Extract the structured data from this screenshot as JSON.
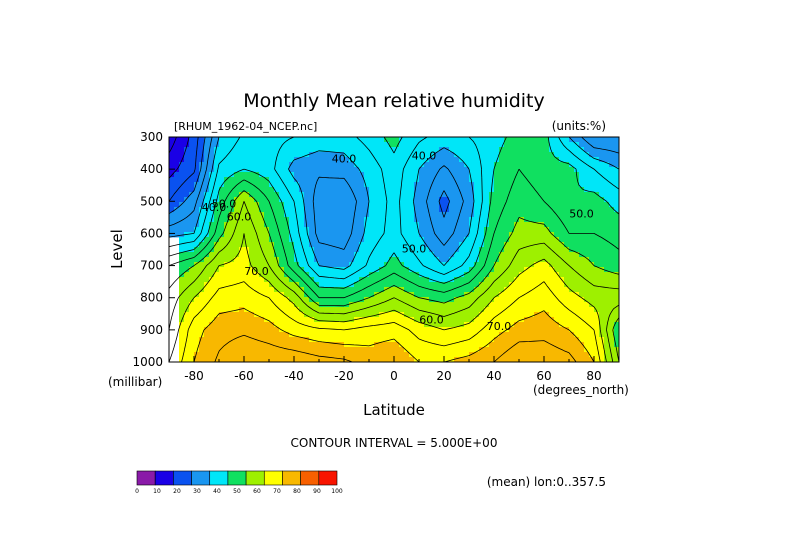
{
  "chart_data": {
    "type": "heatmap",
    "title": "Monthly Mean relative humidity",
    "file_label": "[RHUM_1962-04_NCEP.nc]",
    "units_label": "(units:%)",
    "xlabel": "Latitude",
    "x_unit_label": "(degrees_north)",
    "ylabel": "Level",
    "y_unit_label": "(millibar)",
    "xlim": [
      -90,
      90
    ],
    "ylim": [
      1000,
      300
    ],
    "x_ticks": [
      "-80",
      "-60",
      "-40",
      "-20",
      "0",
      "20",
      "40",
      "60",
      "80"
    ],
    "y_ticks": [
      "300",
      "400",
      "500",
      "600",
      "700",
      "800",
      "900",
      "1000"
    ],
    "contour_interval_text": "CONTOUR INTERVAL = 5.000E+00",
    "mean_note": "(mean) lon:0..357.5",
    "contour_labels": [
      {
        "text": "40.0",
        "lat": -20,
        "level": 380
      },
      {
        "text": "40.0",
        "lat": 12,
        "level": 370
      },
      {
        "text": "40.0",
        "lat": -72,
        "level": 530
      },
      {
        "text": "50.0",
        "lat": -68,
        "level": 520
      },
      {
        "text": "60.0",
        "lat": -62,
        "level": 560
      },
      {
        "text": "70.0",
        "lat": -55,
        "level": 730
      },
      {
        "text": "50.0",
        "lat": 8,
        "level": 660
      },
      {
        "text": "60.0",
        "lat": 15,
        "level": 880
      },
      {
        "text": "70.0",
        "lat": 42,
        "level": 900
      },
      {
        "text": "50.0",
        "lat": 75,
        "level": 550
      }
    ],
    "colorbar": {
      "ticks": [
        "0",
        "10",
        "20",
        "30",
        "40",
        "50",
        "60",
        "70",
        "80",
        "90",
        "100"
      ],
      "colors": [
        "#8a1aa8",
        "#1a00e6",
        "#0a52f0",
        "#1a96f0",
        "#00e6f8",
        "#10e060",
        "#9ef000",
        "#ffff00",
        "#f8b800",
        "#f86000",
        "#f81400"
      ]
    },
    "rh_samples": {
      "lat": [
        -90,
        -80,
        -70,
        -60,
        -50,
        -40,
        -30,
        -20,
        -10,
        0,
        10,
        20,
        30,
        40,
        50,
        60,
        70,
        80,
        90
      ],
      "level": [
        300,
        400,
        500,
        600,
        700,
        800,
        900,
        1000
      ],
      "values": [
        [
          12,
          22,
          40,
          46,
          47,
          45,
          43,
          43,
          47,
          52,
          46,
          43,
          45,
          48,
          52,
          52,
          40,
          30,
          30
        ],
        [
          18,
          24,
          46,
          50,
          47,
          38,
          36,
          37,
          42,
          48,
          40,
          34,
          40,
          50,
          55,
          52,
          52,
          45,
          40
        ],
        [
          25,
          33,
          52,
          65,
          55,
          45,
          32,
          30,
          40,
          47,
          38,
          28,
          37,
          52,
          58,
          55,
          50,
          52,
          48
        ],
        [
          38,
          40,
          58,
          70,
          60,
          48,
          33,
          32,
          42,
          47,
          40,
          32,
          40,
          55,
          62,
          62,
          55,
          55,
          53
        ],
        [
          55,
          60,
          70,
          72,
          65,
          52,
          40,
          38,
          46,
          52,
          46,
          40,
          47,
          60,
          68,
          72,
          65,
          60,
          57
        ],
        [
          62,
          70,
          77,
          78,
          75,
          68,
          55,
          55,
          60,
          65,
          60,
          58,
          62,
          70,
          75,
          78,
          72,
          68,
          68
        ],
        [
          65,
          78,
          83,
          84,
          82,
          78,
          76,
          75,
          77,
          78,
          73,
          70,
          72,
          78,
          82,
          83,
          80,
          75,
          55
        ],
        [
          70,
          80,
          86,
          90,
          89,
          89,
          87,
          86,
          83,
          85,
          80,
          80,
          82,
          85,
          90,
          89,
          87,
          80,
          60
        ]
      ]
    }
  }
}
